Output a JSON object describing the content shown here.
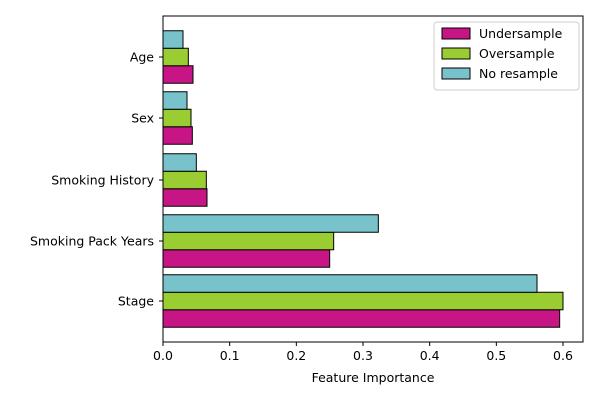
{
  "chart_data": {
    "type": "bar",
    "orientation": "horizontal",
    "categories": [
      "Age",
      "Sex",
      "Smoking History",
      "Smoking Pack Years",
      "Stage"
    ],
    "series": [
      {
        "name": "Undersample",
        "color": "#c71585",
        "values": [
          0.045,
          0.044,
          0.066,
          0.25,
          0.595
        ]
      },
      {
        "name": "Oversample",
        "color": "#9acd32",
        "values": [
          0.038,
          0.042,
          0.065,
          0.256,
          0.6
        ]
      },
      {
        "name": "No resample",
        "color": "#77c2cb",
        "values": [
          0.03,
          0.036,
          0.05,
          0.323,
          0.561
        ]
      }
    ],
    "xlabel": "Feature Importance",
    "ylabel": "",
    "xlim": [
      0,
      0.63
    ],
    "xticks": [
      "0.0",
      "0.1",
      "0.2",
      "0.3",
      "0.4",
      "0.5",
      "0.6"
    ],
    "legend_position": "top-right",
    "grid": false
  }
}
